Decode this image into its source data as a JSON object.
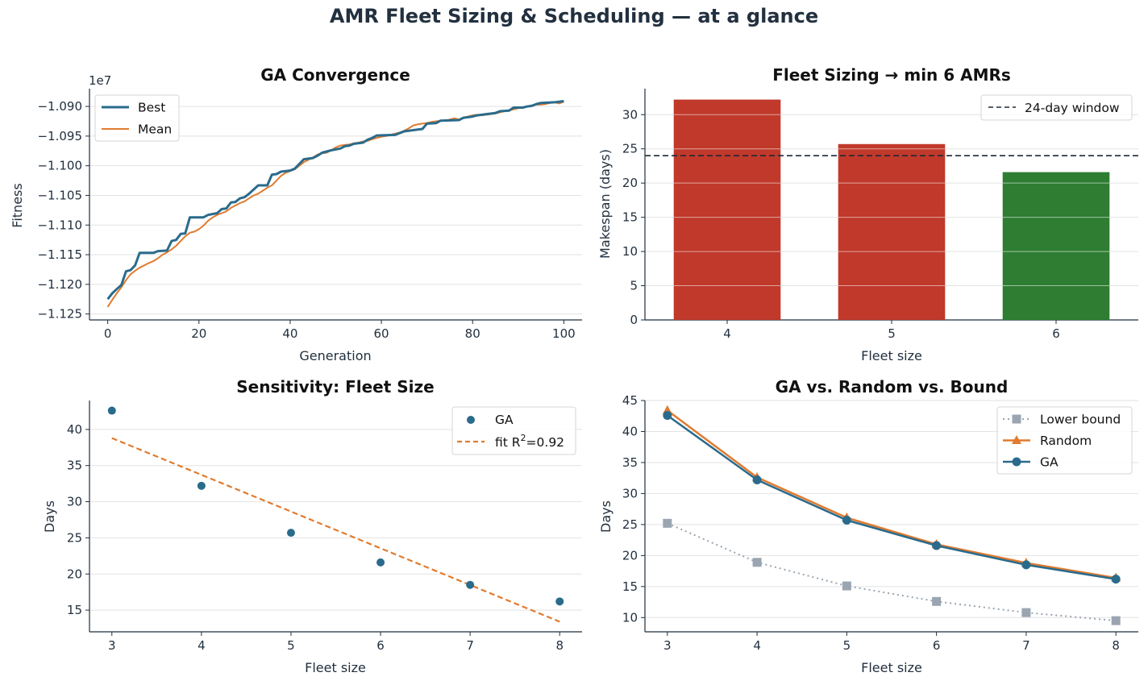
{
  "figure": {
    "title": "AMR Fleet Sizing & Scheduling — at a glance"
  },
  "colors": {
    "blue": "#2a6b8c",
    "orange": "#e07b2f",
    "red": "#c0392b",
    "green": "#2e7d32",
    "gray": "#9aa5b1",
    "dark": "#1f2d3d",
    "grid": "#e2e2e2"
  },
  "chart_data": [
    {
      "type": "line",
      "title": "GA Convergence",
      "xlabel": "Generation",
      "ylabel": "Fitness",
      "offset_text": "1e7",
      "xlim": [
        -4,
        104
      ],
      "ylim": [
        -11.26,
        -10.87
      ],
      "xticks": [
        0,
        20,
        40,
        60,
        80,
        100
      ],
      "xtick_labels": [
        "0",
        "20",
        "40",
        "60",
        "80",
        "100"
      ],
      "yticks": [
        -11.25,
        -11.2,
        -11.15,
        -11.1,
        -11.05,
        -11.0,
        -10.95,
        -10.9
      ],
      "ytick_labels": [
        "−1.125",
        "−1.120",
        "−1.115",
        "−1.110",
        "−1.105",
        "−1.100",
        "−1.095",
        "−1.090"
      ],
      "grid": "y",
      "legend": "top-left",
      "x_range": [
        0,
        100
      ],
      "series": [
        {
          "name": "Best",
          "color": "#2a6b8c",
          "width": 3,
          "points": [
            [
              0,
              -11.225
            ],
            [
              1,
              -11.215
            ],
            [
              2,
              -11.208
            ],
            [
              3,
              -11.201
            ],
            [
              4,
              -11.178
            ],
            [
              5,
              -11.176
            ],
            [
              6,
              -11.168
            ],
            [
              7,
              -11.147
            ],
            [
              10,
              -11.147
            ],
            [
              11,
              -11.144
            ],
            [
              13,
              -11.143
            ],
            [
              14,
              -11.127
            ],
            [
              15,
              -11.125
            ],
            [
              16,
              -11.115
            ],
            [
              17,
              -11.114
            ],
            [
              18,
              -11.087
            ],
            [
              21,
              -11.087
            ],
            [
              22,
              -11.083
            ],
            [
              24,
              -11.08
            ],
            [
              25,
              -11.073
            ],
            [
              26,
              -11.072
            ],
            [
              27,
              -11.062
            ],
            [
              28,
              -11.061
            ],
            [
              29,
              -11.055
            ],
            [
              30,
              -11.053
            ],
            [
              31,
              -11.047
            ],
            [
              32,
              -11.04
            ],
            [
              33,
              -11.033
            ],
            [
              35,
              -11.033
            ],
            [
              36,
              -11.015
            ],
            [
              37,
              -11.014
            ],
            [
              38,
              -11.01
            ],
            [
              40,
              -11.008
            ],
            [
              41,
              -11.005
            ],
            [
              42,
              -10.997
            ],
            [
              43,
              -10.989
            ],
            [
              45,
              -10.987
            ],
            [
              46,
              -10.983
            ],
            [
              47,
              -10.978
            ],
            [
              48,
              -10.976
            ],
            [
              49,
              -10.974
            ],
            [
              51,
              -10.971
            ],
            [
              52,
              -10.967
            ],
            [
              53,
              -10.966
            ],
            [
              54,
              -10.963
            ],
            [
              56,
              -10.961
            ],
            [
              57,
              -10.956
            ],
            [
              58,
              -10.953
            ],
            [
              59,
              -10.949
            ],
            [
              63,
              -10.948
            ],
            [
              64,
              -10.945
            ],
            [
              65,
              -10.942
            ],
            [
              67,
              -10.94
            ],
            [
              68,
              -10.939
            ],
            [
              69,
              -10.938
            ],
            [
              70,
              -10.929
            ],
            [
              72,
              -10.928
            ],
            [
              73,
              -10.924
            ],
            [
              77,
              -10.923
            ],
            [
              78,
              -10.919
            ],
            [
              80,
              -10.917
            ],
            [
              81,
              -10.915
            ],
            [
              83,
              -10.913
            ],
            [
              85,
              -10.911
            ],
            [
              86,
              -10.908
            ],
            [
              88,
              -10.907
            ],
            [
              89,
              -10.902
            ],
            [
              91,
              -10.902
            ],
            [
              92,
              -10.9
            ],
            [
              93,
              -10.899
            ],
            [
              94,
              -10.896
            ],
            [
              95,
              -10.894
            ],
            [
              98,
              -10.893
            ],
            [
              99,
              -10.892
            ],
            [
              100,
              -10.891
            ]
          ]
        },
        {
          "name": "Mean",
          "color": "#e07b2f",
          "width": 2,
          "points": [
            [
              0,
              -11.238
            ],
            [
              1,
              -11.226
            ],
            [
              2,
              -11.215
            ],
            [
              3,
              -11.205
            ],
            [
              4,
              -11.193
            ],
            [
              5,
              -11.183
            ],
            [
              6,
              -11.177
            ],
            [
              7,
              -11.172
            ],
            [
              8,
              -11.168
            ],
            [
              9,
              -11.164
            ],
            [
              10,
              -11.161
            ],
            [
              11,
              -11.156
            ],
            [
              12,
              -11.15
            ],
            [
              13,
              -11.146
            ],
            [
              14,
              -11.141
            ],
            [
              15,
              -11.135
            ],
            [
              16,
              -11.127
            ],
            [
              17,
              -11.119
            ],
            [
              18,
              -11.113
            ],
            [
              19,
              -11.111
            ],
            [
              20,
              -11.107
            ],
            [
              21,
              -11.101
            ],
            [
              22,
              -11.093
            ],
            [
              23,
              -11.087
            ],
            [
              24,
              -11.083
            ],
            [
              25,
              -11.08
            ],
            [
              26,
              -11.077
            ],
            [
              27,
              -11.071
            ],
            [
              28,
              -11.067
            ],
            [
              29,
              -11.063
            ],
            [
              30,
              -11.06
            ],
            [
              31,
              -11.055
            ],
            [
              32,
              -11.05
            ],
            [
              33,
              -11.047
            ],
            [
              34,
              -11.042
            ],
            [
              35,
              -11.037
            ],
            [
              36,
              -11.033
            ],
            [
              37,
              -11.025
            ],
            [
              38,
              -11.017
            ],
            [
              39,
              -11.012
            ],
            [
              40,
              -11.009
            ],
            [
              41,
              -11.006
            ],
            [
              42,
              -11.0
            ],
            [
              43,
              -10.994
            ],
            [
              44,
              -10.99
            ],
            [
              45,
              -10.986
            ],
            [
              46,
              -10.981
            ],
            [
              47,
              -10.979
            ],
            [
              48,
              -10.978
            ],
            [
              49,
              -10.974
            ],
            [
              50,
              -10.969
            ],
            [
              51,
              -10.966
            ],
            [
              52,
              -10.965
            ],
            [
              53,
              -10.964
            ],
            [
              54,
              -10.962
            ],
            [
              55,
              -10.961
            ],
            [
              56,
              -10.959
            ],
            [
              57,
              -10.958
            ],
            [
              58,
              -10.955
            ],
            [
              59,
              -10.953
            ],
            [
              60,
              -10.951
            ],
            [
              61,
              -10.95
            ],
            [
              62,
              -10.948
            ],
            [
              63,
              -10.946
            ],
            [
              64,
              -10.944
            ],
            [
              65,
              -10.941
            ],
            [
              66,
              -10.937
            ],
            [
              67,
              -10.932
            ],
            [
              68,
              -10.93
            ],
            [
              69,
              -10.929
            ],
            [
              70,
              -10.928
            ],
            [
              71,
              -10.926
            ],
            [
              72,
              -10.925
            ],
            [
              73,
              -10.924
            ],
            [
              74,
              -10.924
            ],
            [
              75,
              -10.922
            ],
            [
              76,
              -10.92
            ],
            [
              77,
              -10.922
            ],
            [
              78,
              -10.92
            ],
            [
              79,
              -10.917
            ],
            [
              80,
              -10.915
            ],
            [
              81,
              -10.914
            ],
            [
              82,
              -10.915
            ],
            [
              83,
              -10.914
            ],
            [
              84,
              -10.913
            ],
            [
              85,
              -10.912
            ],
            [
              86,
              -10.91
            ],
            [
              87,
              -10.908
            ],
            [
              88,
              -10.906
            ],
            [
              89,
              -10.905
            ],
            [
              90,
              -10.903
            ],
            [
              91,
              -10.902
            ],
            [
              92,
              -10.9
            ],
            [
              93,
              -10.898
            ],
            [
              94,
              -10.897
            ],
            [
              95,
              -10.897
            ],
            [
              96,
              -10.896
            ],
            [
              97,
              -10.894
            ],
            [
              98,
              -10.893
            ],
            [
              99,
              -10.895
            ],
            [
              100,
              -10.892
            ]
          ]
        }
      ]
    },
    {
      "type": "bar",
      "title": "Fleet Sizing → min 6 AMRs",
      "xlabel": "Fleet size",
      "ylabel": "Makespan (days)",
      "categories": [
        "4",
        "5",
        "6"
      ],
      "values": [
        32.2,
        25.7,
        21.6
      ],
      "bar_colors": [
        "#c0392b",
        "#c0392b",
        "#2e7d32"
      ],
      "ylim": [
        0,
        33.8
      ],
      "yticks": [
        0,
        5,
        10,
        15,
        20,
        25,
        30
      ],
      "ytick_labels": [
        "0",
        "5",
        "10",
        "15",
        "20",
        "25",
        "30"
      ],
      "grid": "y",
      "reference_line": {
        "value": 24,
        "name": "24-day window",
        "style": "dashed"
      },
      "legend": "top-right"
    },
    {
      "type": "scatter",
      "title": "Sensitivity: Fleet Size",
      "xlabel": "Fleet size",
      "ylabel": "Days",
      "xlim": [
        2.75,
        8.25
      ],
      "ylim": [
        12,
        44
      ],
      "xticks": [
        3,
        4,
        5,
        6,
        7,
        8
      ],
      "xtick_labels": [
        "3",
        "4",
        "5",
        "6",
        "7",
        "8"
      ],
      "yticks": [
        15,
        20,
        25,
        30,
        35,
        40
      ],
      "ytick_labels": [
        "15",
        "20",
        "25",
        "30",
        "35",
        "40"
      ],
      "grid": "y",
      "legend": "top-right",
      "series": [
        {
          "name": "GA",
          "color": "#2a6b8c",
          "x": [
            3,
            4,
            5,
            6,
            7,
            8
          ],
          "y": [
            42.6,
            32.2,
            25.7,
            21.6,
            18.5,
            16.2
          ]
        }
      ],
      "fit": {
        "label": "fit R²=0.92",
        "label_main": "fit R",
        "label_sup": "2",
        "label_tail": "=0.92",
        "color": "#e07b2f",
        "x": [
          3,
          8
        ],
        "y": [
          38.8,
          13.4
        ]
      }
    },
    {
      "type": "line",
      "title": "GA vs. Random vs. Bound",
      "xlabel": "Fleet size",
      "ylabel": "Days",
      "xlim": [
        2.75,
        8.25
      ],
      "ylim": [
        7.7,
        45
      ],
      "xticks": [
        3,
        4,
        5,
        6,
        7,
        8
      ],
      "xtick_labels": [
        "3",
        "4",
        "5",
        "6",
        "7",
        "8"
      ],
      "yticks": [
        10,
        15,
        20,
        25,
        30,
        35,
        40,
        45
      ],
      "ytick_labels": [
        "10",
        "15",
        "20",
        "25",
        "30",
        "35",
        "40",
        "45"
      ],
      "grid": "y",
      "legend": "top-right",
      "x": [
        3,
        4,
        5,
        6,
        7,
        8
      ],
      "series": [
        {
          "name": "Lower bound",
          "color": "#9aa5b1",
          "marker": "square",
          "style": "dotted",
          "values": [
            25.2,
            18.9,
            15.1,
            12.6,
            10.8,
            9.5
          ]
        },
        {
          "name": "Random",
          "color": "#e07b2f",
          "marker": "triangle",
          "style": "solid",
          "values": [
            43.4,
            32.6,
            26.1,
            21.8,
            18.8,
            16.4
          ]
        },
        {
          "name": "GA",
          "color": "#2a6b8c",
          "marker": "circle",
          "style": "solid",
          "values": [
            42.6,
            32.2,
            25.7,
            21.6,
            18.5,
            16.2
          ]
        }
      ]
    }
  ]
}
